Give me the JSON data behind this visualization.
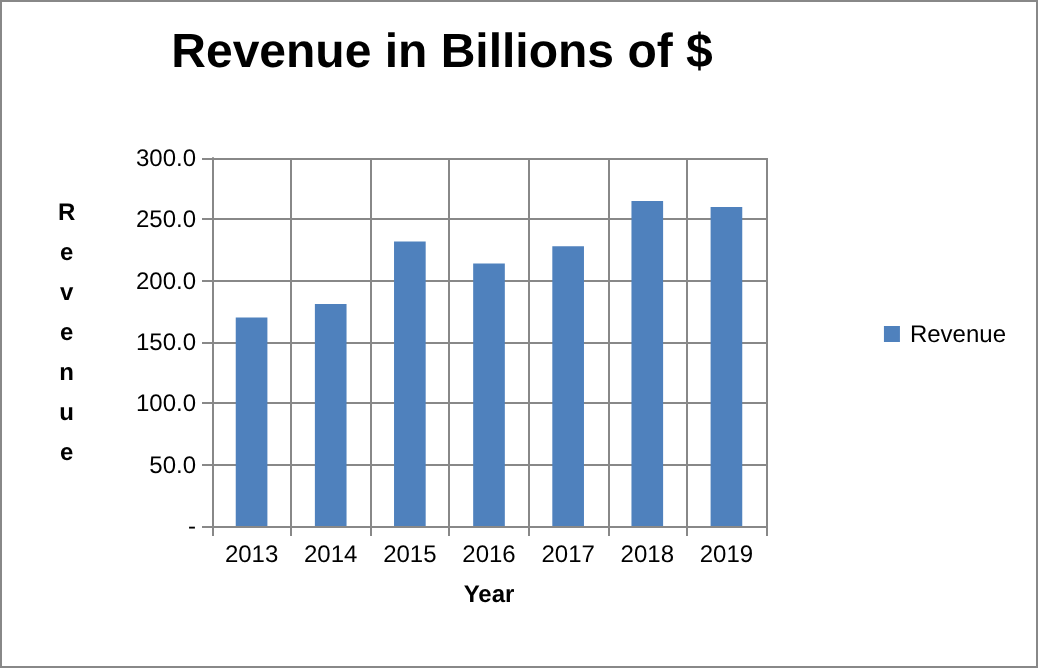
{
  "chart_data": {
    "type": "bar",
    "title": "Revenue in Billions of $",
    "xlabel": "Year",
    "ylabel": "Revenue",
    "categories": [
      "2013",
      "2014",
      "2015",
      "2016",
      "2017",
      "2018",
      "2019"
    ],
    "series": [
      {
        "name": "Revenue",
        "color": "#4f81bd",
        "values": [
          170,
          181,
          232,
          214,
          228,
          265,
          260
        ]
      }
    ],
    "ylim": [
      0,
      300
    ],
    "yticks": [
      {
        "value": 0,
        "label": "-"
      },
      {
        "value": 50,
        "label": "50.0"
      },
      {
        "value": 100,
        "label": "100.0"
      },
      {
        "value": 150,
        "label": "150.0"
      },
      {
        "value": 200,
        "label": "200.0"
      },
      {
        "value": 250,
        "label": "250.0"
      },
      {
        "value": 300,
        "label": "300.0"
      }
    ],
    "grid": true,
    "legend": "right"
  }
}
